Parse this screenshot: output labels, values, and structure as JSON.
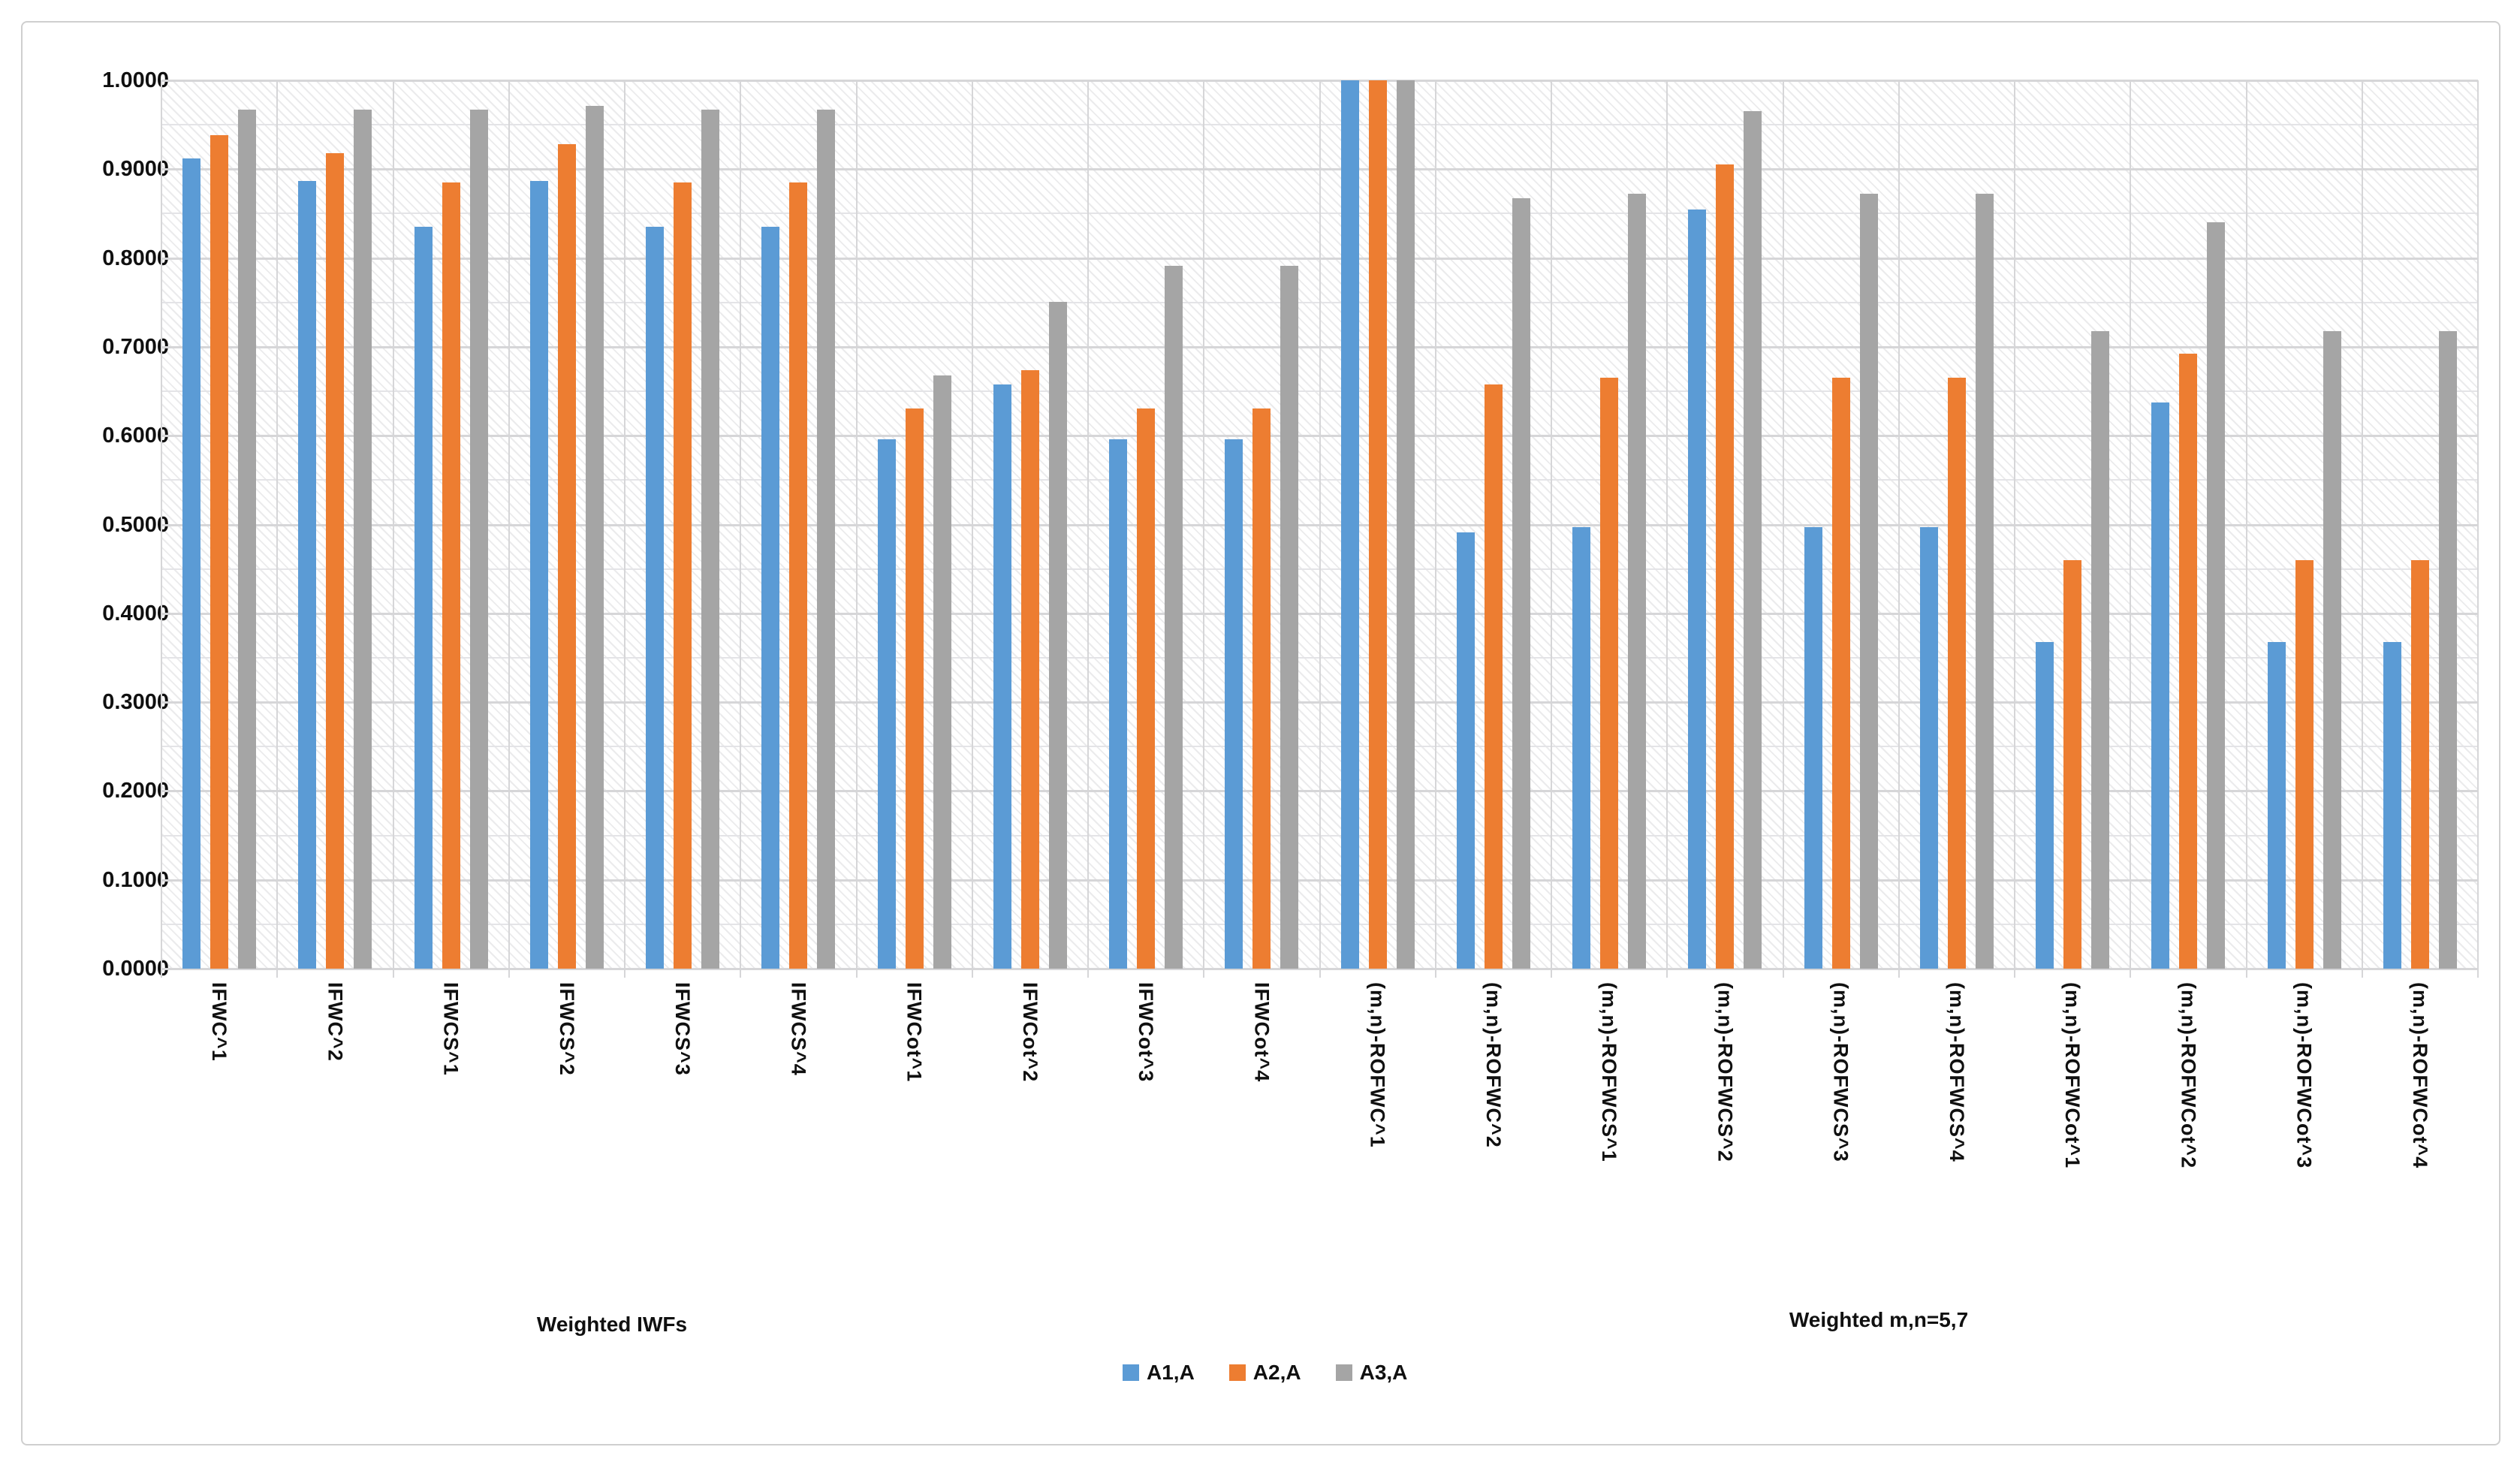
{
  "chart_data": {
    "type": "bar",
    "title": "",
    "categories": [
      "IFWC^1",
      "IFWC^2",
      "IFWCS^1",
      "IFWCS^2",
      "IFWCS^3",
      "IFWCS^4",
      "IFWCot^1",
      "IFWCot^2",
      "IFWCot^3",
      "IFWCot^4",
      "(m,n)-ROFWC^1",
      "(m,n)-ROFWC^2",
      "(m,n)-ROFWCS^1",
      "(m,n)-ROFWCS^2",
      "(m,n)-ROFWCS^3",
      "(m,n)-ROFWCS^4",
      "(m,n)-ROFWCot^1",
      "(m,n)-ROFWCot^2",
      "(m,n)-ROFWCot^3",
      "(m,n)-ROFWCot^4"
    ],
    "series": [
      {
        "name": "A1,A",
        "color": "#5B9BD5",
        "values": [
          0.912,
          0.887,
          0.835,
          0.887,
          0.835,
          0.835,
          0.596,
          0.658,
          0.596,
          0.596,
          1.0,
          0.491,
          0.497,
          0.855,
          0.497,
          0.497,
          0.368,
          0.637,
          0.368,
          0.368
        ]
      },
      {
        "name": "A2,A",
        "color": "#ED7D31",
        "values": [
          0.938,
          0.918,
          0.885,
          0.928,
          0.885,
          0.885,
          0.631,
          0.674,
          0.631,
          0.631,
          1.0,
          0.658,
          0.665,
          0.905,
          0.665,
          0.665,
          0.46,
          0.692,
          0.46,
          0.46
        ]
      },
      {
        "name": "A3,A",
        "color": "#A5A5A5",
        "values": [
          0.967,
          0.967,
          0.967,
          0.971,
          0.967,
          0.967,
          0.668,
          0.751,
          0.791,
          0.791,
          1.0,
          0.867,
          0.872,
          0.965,
          0.872,
          0.872,
          0.718,
          0.84,
          0.718,
          0.718
        ]
      }
    ],
    "group_labels": [
      {
        "label": "Weighted IWFs",
        "span_categories": [
          1,
          10
        ]
      },
      {
        "label": "Weighted m,n=5,7",
        "span_categories": [
          11,
          20
        ]
      }
    ],
    "y_ticks": [
      "1.0000",
      "0.9000",
      "0.8000",
      "0.7000",
      "0.6000",
      "0.5000",
      "0.4000",
      "0.3000",
      "0.2000",
      "0.1000",
      "0.0000"
    ],
    "ylim": [
      0,
      1
    ],
    "grid": {
      "major_step": 0.1,
      "minor_step": 0.05,
      "vertical_separators": "per-category"
    },
    "legend_position": "bottom",
    "xlabel": "",
    "ylabel": ""
  },
  "colors": {
    "series_blue": "#5B9BD5",
    "series_orange": "#ED7D31",
    "series_gray": "#A5A5A5",
    "gridline_major": "#d6d6d8",
    "gridline_minor": "#e4e4e7",
    "frame_border": "#cfcfcf",
    "text": "#101010"
  }
}
